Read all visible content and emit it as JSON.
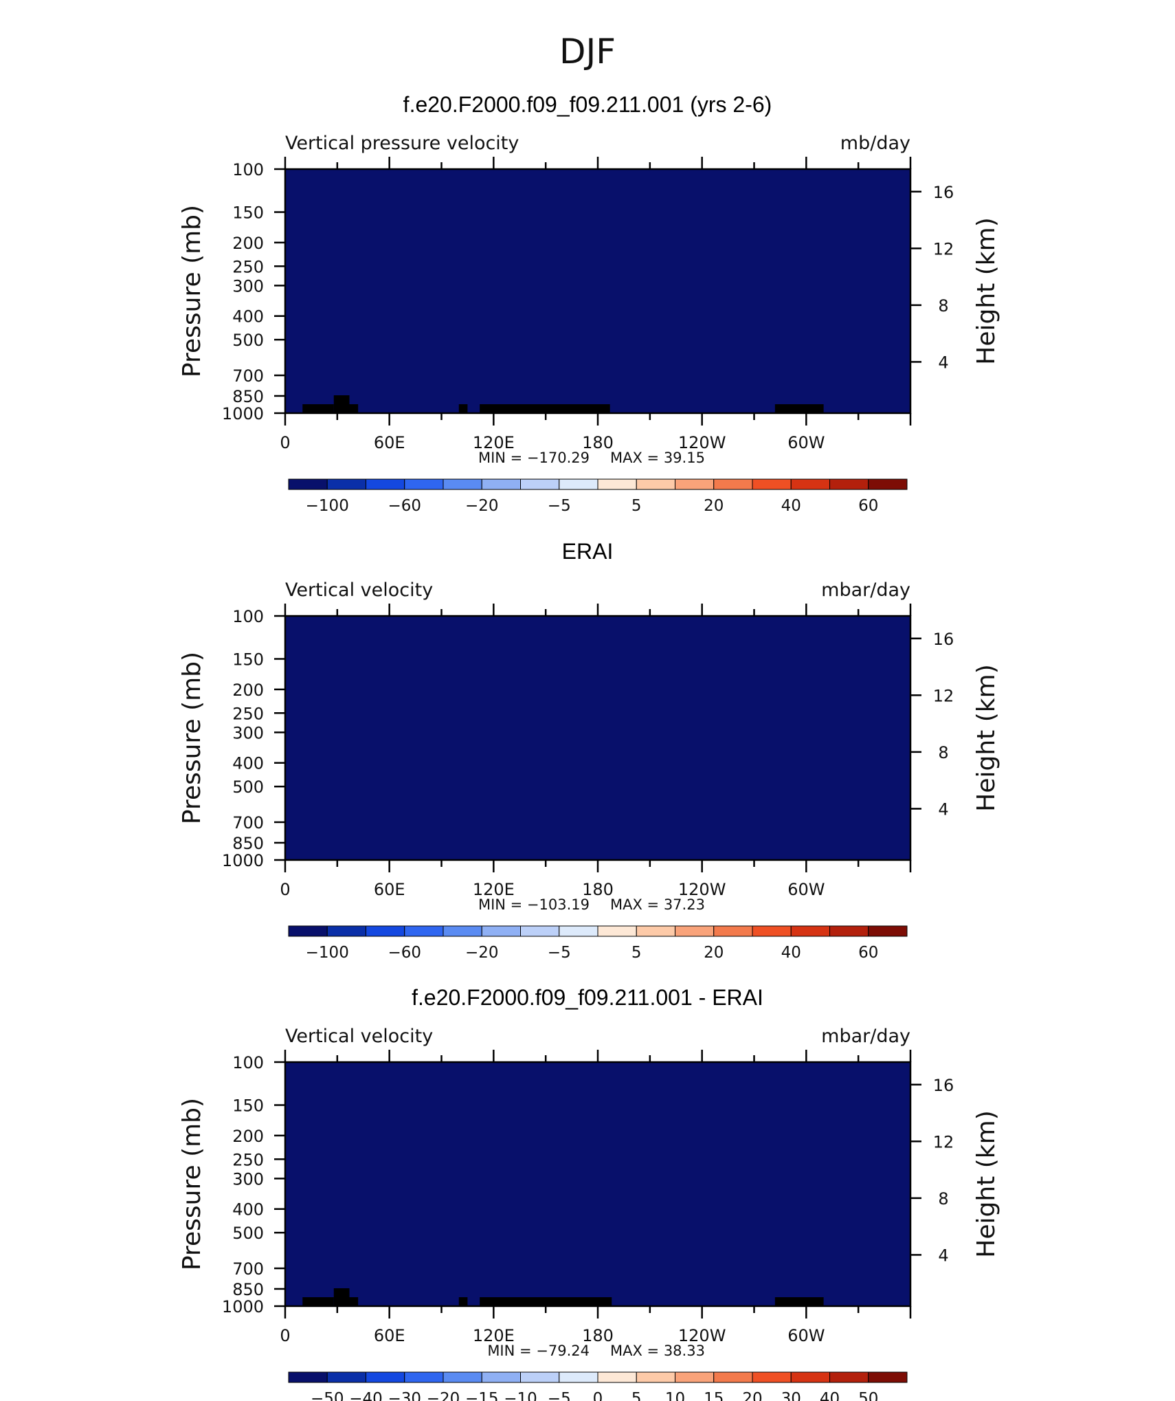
{
  "title": "DJF",
  "chart_data": [
    {
      "type": "heatmap",
      "title": "f.e20.F2000.f09_f09.211.001 (yrs 2-6)",
      "variable": "Vertical pressure velocity",
      "units": "mb/day",
      "ylabel": "Pressure (mb)",
      "ylabel_right": "Height (km)",
      "x_ticks": [
        "0",
        "60E",
        "120E",
        "180",
        "120W",
        "60W"
      ],
      "x_range": [
        0,
        360
      ],
      "y_ticks": [
        "100",
        "150",
        "200",
        "250",
        "300",
        "400",
        "500",
        "700",
        "850",
        "1000"
      ],
      "y_range": [
        1000,
        100
      ],
      "y_scale": "log",
      "right_ticks": [
        "16",
        "12",
        "8",
        "4"
      ],
      "min_label": "MIN  =  −170.29",
      "max_label": "MAX  =    39.15",
      "colorbar_labels": [
        "−100",
        "−60",
        "−20",
        "−5",
        "5",
        "20",
        "40",
        "60"
      ],
      "topography": [
        [
          10,
          28
        ],
        [
          28,
          37
        ],
        [
          37,
          42
        ],
        [
          100,
          105
        ],
        [
          112,
          187
        ],
        [
          282,
          310
        ]
      ]
    },
    {
      "type": "heatmap",
      "title": "ERAI",
      "variable": "Vertical velocity",
      "units": "mbar/day",
      "ylabel": "Pressure (mb)",
      "ylabel_right": "Height (km)",
      "x_ticks": [
        "0",
        "60E",
        "120E",
        "180",
        "120W",
        "60W"
      ],
      "x_range": [
        0,
        360
      ],
      "y_ticks": [
        "100",
        "150",
        "200",
        "250",
        "300",
        "400",
        "500",
        "700",
        "850",
        "1000"
      ],
      "y_range": [
        1000,
        100
      ],
      "y_scale": "log",
      "right_ticks": [
        "16",
        "12",
        "8",
        "4"
      ],
      "min_label": "MIN  =  −103.19",
      "max_label": "MAX  =    37.23",
      "colorbar_labels": [
        "−100",
        "−60",
        "−20",
        "−5",
        "5",
        "20",
        "40",
        "60"
      ],
      "topography": []
    },
    {
      "type": "heatmap",
      "title": "f.e20.F2000.f09_f09.211.001 - ERAI",
      "variable": "Vertical velocity",
      "units": "mbar/day",
      "ylabel": "Pressure (mb)",
      "ylabel_right": "Height (km)",
      "x_ticks": [
        "0",
        "60E",
        "120E",
        "180",
        "120W",
        "60W"
      ],
      "x_range": [
        0,
        360
      ],
      "y_ticks": [
        "100",
        "150",
        "200",
        "250",
        "300",
        "400",
        "500",
        "700",
        "850",
        "1000"
      ],
      "y_range": [
        1000,
        100
      ],
      "y_scale": "log",
      "right_ticks": [
        "16",
        "12",
        "8",
        "4"
      ],
      "min_label": "MIN  =  −79.24",
      "max_label": "MAX  =    38.33",
      "colorbar_labels": [
        "−50",
        "−40",
        "−30",
        "−20",
        "−15",
        "−10",
        "−5",
        "0",
        "5",
        "10",
        "15",
        "20",
        "30",
        "40",
        "50"
      ],
      "topography": [
        [
          10,
          28
        ],
        [
          28,
          37
        ],
        [
          37,
          42
        ],
        [
          100,
          105
        ],
        [
          112,
          188
        ],
        [
          282,
          310
        ]
      ]
    }
  ],
  "colors": {
    "palette": [
      "#08106b",
      "#0a2fa8",
      "#1448e0",
      "#2f66f0",
      "#5a8bf2",
      "#8fb0f4",
      "#bcd0f8",
      "#ddeafb",
      "#fde8d6",
      "#fdcaa8",
      "#f9a37a",
      "#f37a4c",
      "#ef5024",
      "#d63313",
      "#b3200c",
      "#7d0d05"
    ],
    "topography": "#000000"
  }
}
